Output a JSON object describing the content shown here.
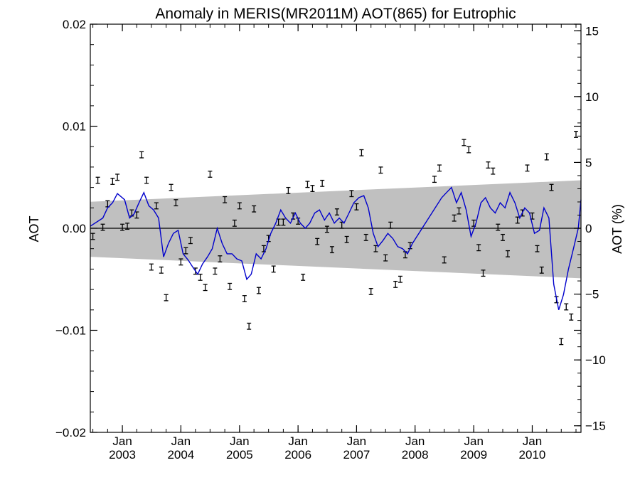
{
  "chart_data": {
    "type": "scatter",
    "title": "Anomaly in MERIS(MR2011M) AOT(865) for Eutrophic",
    "ylabel": "AOT",
    "y2label": "AOT (%)",
    "ylim": [
      -0.02,
      0.02
    ],
    "y2lim": [
      -15.5,
      15.5
    ],
    "xlim": [
      "2002-06-15",
      "2010-11-01"
    ],
    "yticks": [
      {
        "value": 0.02,
        "label": "0.02"
      },
      {
        "value": 0.01,
        "label": "0.01"
      },
      {
        "value": 0.0,
        "label": "0.00"
      },
      {
        "value": -0.01,
        "label": "−0.01"
      },
      {
        "value": -0.02,
        "label": "−0.02"
      }
    ],
    "y2ticks": [
      {
        "value": 15,
        "label": "15"
      },
      {
        "value": 10,
        "label": "10"
      },
      {
        "value": 5,
        "label": "5"
      },
      {
        "value": 0,
        "label": "0"
      },
      {
        "value": -5,
        "label": "−5"
      },
      {
        "value": -10,
        "label": "−10"
      },
      {
        "value": -15,
        "label": "−15"
      }
    ],
    "xticks": [
      {
        "date": "2003-01-01",
        "month": "Jan",
        "year": "2003"
      },
      {
        "date": "2004-01-01",
        "month": "Jan",
        "year": "2004"
      },
      {
        "date": "2005-01-01",
        "month": "Jan",
        "year": "2005"
      },
      {
        "date": "2006-01-01",
        "month": "Jan",
        "year": "2006"
      },
      {
        "date": "2007-01-01",
        "month": "Jan",
        "year": "2007"
      },
      {
        "date": "2008-01-01",
        "month": "Jan",
        "year": "2008"
      },
      {
        "date": "2009-01-01",
        "month": "Jan",
        "year": "2009"
      },
      {
        "date": "2010-01-01",
        "month": "Jan",
        "year": "2010"
      }
    ],
    "band": {
      "x": [
        "2002-06-15",
        "2010-11-01"
      ],
      "upper": [
        0.0026,
        0.0047
      ],
      "lower": [
        -0.0028,
        -0.0049
      ],
      "color": "#c0c0c0"
    },
    "zero_line": true,
    "series": [
      {
        "kind": "points",
        "color": "#000000",
        "x": [
          "2002-07-01",
          "2002-08-01",
          "2002-09-01",
          "2002-10-01",
          "2002-11-01",
          "2002-12-01",
          "2003-01-01",
          "2003-02-01",
          "2003-03-01",
          "2003-04-01",
          "2003-05-01",
          "2003-06-01",
          "2003-07-01",
          "2003-08-01",
          "2003-09-01",
          "2003-10-01",
          "2003-11-01",
          "2003-12-01",
          "2004-01-01",
          "2004-02-01",
          "2004-03-01",
          "2004-04-01",
          "2004-05-01",
          "2004-06-01",
          "2004-07-01",
          "2004-08-01",
          "2004-09-01",
          "2004-10-01",
          "2004-11-01",
          "2004-12-01",
          "2005-01-01",
          "2005-02-01",
          "2005-03-01",
          "2005-04-01",
          "2005-05-01",
          "2005-06-01",
          "2005-07-01",
          "2005-08-01",
          "2005-09-01",
          "2005-10-01",
          "2005-11-01",
          "2005-12-01",
          "2006-01-01",
          "2006-02-01",
          "2006-03-01",
          "2006-04-01",
          "2006-05-01",
          "2006-06-01",
          "2006-07-01",
          "2006-08-01",
          "2006-09-01",
          "2006-10-01",
          "2006-11-01",
          "2006-12-01",
          "2007-01-01",
          "2007-02-01",
          "2007-03-01",
          "2007-04-01",
          "2007-05-01",
          "2007-06-01",
          "2007-07-01",
          "2007-08-01",
          "2007-09-01",
          "2007-10-01",
          "2007-11-01",
          "2007-12-01",
          "2008-05-01",
          "2008-06-01",
          "2008-07-01",
          "2008-09-01",
          "2008-10-01",
          "2008-11-01",
          "2008-12-01",
          "2009-01-01",
          "2009-02-01",
          "2009-03-01",
          "2009-04-01",
          "2009-05-01",
          "2009-06-01",
          "2009-07-01",
          "2009-08-01",
          "2009-10-01",
          "2009-11-01",
          "2009-12-01",
          "2010-01-01",
          "2010-02-01",
          "2010-03-01",
          "2010-04-01",
          "2010-05-01",
          "2010-06-01",
          "2010-07-01",
          "2010-08-01",
          "2010-09-01",
          "2010-10-01"
        ],
        "y": [
          -0.0008,
          0.0047,
          0.0001,
          0.0024,
          0.0046,
          0.005,
          0.0001,
          0.0002,
          0.0015,
          0.0013,
          0.0072,
          0.0047,
          -0.0038,
          0.0022,
          -0.0041,
          -0.0068,
          0.004,
          0.0025,
          -0.0033,
          -0.0022,
          -0.0012,
          -0.0042,
          -0.0048,
          -0.0058,
          0.0053,
          -0.0042,
          -0.003,
          0.0028,
          -0.0057,
          0.0005,
          0.0022,
          -0.0069,
          -0.0096,
          0.0019,
          -0.0061,
          -0.002,
          -0.001,
          -0.004,
          0.0006,
          0.0006,
          0.0037,
          0.0012,
          0.0007,
          -0.0048,
          0.0043,
          0.0039,
          -0.0013,
          0.0044,
          -0.0001,
          -0.0021,
          0.0016,
          0.0003,
          -0.0011,
          0.0034,
          0.0021,
          0.0074,
          -0.0009,
          -0.0062,
          -0.002,
          0.0057,
          -0.0029,
          0.0003,
          -0.0055,
          -0.005,
          -0.0026,
          -0.0017,
          0.0048,
          0.0059,
          -0.0031,
          0.001,
          0.0017,
          0.0084,
          0.0077,
          0.0005,
          -0.0019,
          -0.0044,
          0.0062,
          0.0056,
          0.0001,
          -0.0009,
          -0.0025,
          0.0008,
          0.0015,
          0.0059,
          0.0012,
          -0.002,
          -0.0041,
          0.007,
          0.004,
          -0.007,
          -0.0111,
          -0.0077,
          -0.0087,
          0.0092
        ],
        "err": 0.0003
      },
      {
        "kind": "line",
        "color": "#0000cc",
        "x": [
          "2002-06-15",
          "2002-09-01",
          "2002-10-01",
          "2002-11-01",
          "2002-12-01",
          "2003-01-15",
          "2003-02-15",
          "2003-03-15",
          "2003-04-15",
          "2003-05-15",
          "2003-06-15",
          "2003-07-15",
          "2003-08-15",
          "2003-09-15",
          "2003-10-15",
          "2003-11-15",
          "2003-12-15",
          "2004-01-15",
          "2004-02-15",
          "2004-03-15",
          "2004-04-15",
          "2004-05-15",
          "2004-06-15",
          "2004-07-15",
          "2004-08-15",
          "2004-09-15",
          "2004-10-15",
          "2004-11-15",
          "2004-12-15",
          "2005-01-15",
          "2005-02-15",
          "2005-03-15",
          "2005-04-15",
          "2005-05-15",
          "2005-06-15",
          "2005-07-15",
          "2005-08-15",
          "2005-09-15",
          "2005-10-15",
          "2005-11-15",
          "2005-12-15",
          "2006-01-15",
          "2006-02-15",
          "2006-03-15",
          "2006-04-15",
          "2006-05-15",
          "2006-06-15",
          "2006-07-15",
          "2006-08-15",
          "2006-09-15",
          "2006-10-15",
          "2006-11-15",
          "2006-12-15",
          "2007-01-15",
          "2007-02-15",
          "2007-03-15",
          "2007-04-15",
          "2007-05-15",
          "2007-06-15",
          "2007-07-15",
          "2007-08-15",
          "2007-09-15",
          "2007-10-15",
          "2007-11-15",
          "2007-12-15",
          "2008-06-15",
          "2008-07-15",
          "2008-08-15",
          "2008-09-15",
          "2008-10-15",
          "2008-11-15",
          "2008-12-15",
          "2009-01-15",
          "2009-02-15",
          "2009-03-15",
          "2009-04-15",
          "2009-05-15",
          "2009-06-15",
          "2009-07-15",
          "2009-08-15",
          "2009-09-15",
          "2009-10-15",
          "2009-11-15",
          "2009-12-15",
          "2010-01-15",
          "2010-02-15",
          "2010-03-15",
          "2010-04-15",
          "2010-05-15",
          "2010-06-15",
          "2010-07-15",
          "2010-08-15",
          "2010-09-15",
          "2010-10-15",
          "2010-11-01"
        ],
        "y": [
          0.0002,
          0.001,
          0.002,
          0.0025,
          0.0034,
          0.0028,
          0.001,
          0.0014,
          0.0025,
          0.0035,
          0.0022,
          0.0018,
          0.001,
          -0.0028,
          -0.0015,
          -0.0005,
          -0.0002,
          -0.0025,
          -0.0031,
          -0.0038,
          -0.0045,
          -0.0035,
          -0.0028,
          -0.002,
          0.0,
          -0.0015,
          -0.0025,
          -0.0025,
          -0.003,
          -0.0032,
          -0.005,
          -0.0045,
          -0.0025,
          -0.003,
          -0.002,
          -0.0005,
          0.0005,
          0.0018,
          0.001,
          0.0005,
          0.0015,
          0.0005,
          0.0,
          0.0005,
          0.0015,
          0.0018,
          0.0008,
          0.0015,
          0.0005,
          0.001,
          0.0005,
          0.0015,
          0.0025,
          0.003,
          0.0032,
          0.002,
          -0.0005,
          -0.0018,
          -0.0012,
          -0.0005,
          -0.001,
          -0.0018,
          -0.002,
          -0.0025,
          -0.0015,
          0.003,
          0.0035,
          0.004,
          0.0025,
          0.0035,
          0.0018,
          -0.0008,
          0.0005,
          0.0025,
          0.003,
          0.002,
          0.0015,
          0.0025,
          0.002,
          0.0035,
          0.0025,
          0.001,
          0.002,
          0.0015,
          -0.0005,
          -0.0002,
          0.002,
          0.001,
          -0.0055,
          -0.008,
          -0.0065,
          -0.004,
          -0.002,
          0.0,
          0.0028
        ]
      }
    ]
  }
}
